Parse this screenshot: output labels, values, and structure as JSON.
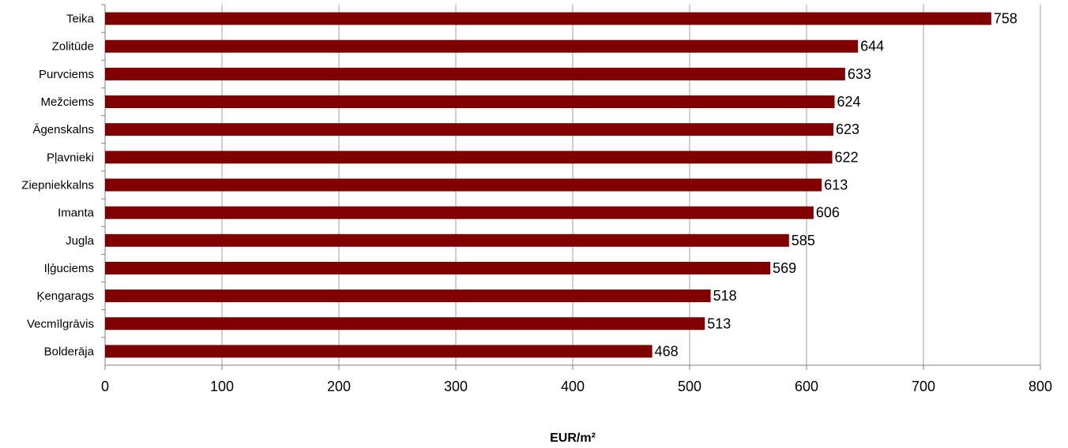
{
  "chart_data": {
    "type": "bar",
    "orientation": "horizontal",
    "categories": [
      "Teika",
      "Zolitūde",
      "Purvciems",
      "Mežciems",
      "Āgenskalns",
      "Pļavnieki",
      "Ziepniekkalns",
      "Imanta",
      "Jugla",
      "Iļģuciems",
      "Ķengarags",
      "Vecmīlgrāvis",
      "Bolderāja"
    ],
    "values": [
      758,
      644,
      633,
      624,
      623,
      622,
      613,
      606,
      585,
      569,
      518,
      513,
      468
    ],
    "value_labels": [
      "758",
      "644",
      "633",
      "624",
      "623",
      "622",
      "613",
      "606",
      "585",
      "569",
      "518",
      "513",
      "468"
    ],
    "xlabel": "EUR/m²",
    "ylabel": "",
    "xlim": [
      0,
      800
    ],
    "x_ticks": [
      0,
      100,
      200,
      300,
      400,
      500,
      600,
      700,
      800
    ],
    "x_tick_labels": [
      "0",
      "100",
      "200",
      "300",
      "400",
      "500",
      "600",
      "700",
      "800"
    ],
    "grid": "vertical",
    "legend": "none",
    "bar_color": "#800000",
    "grid_color": "#a0a0a0"
  }
}
